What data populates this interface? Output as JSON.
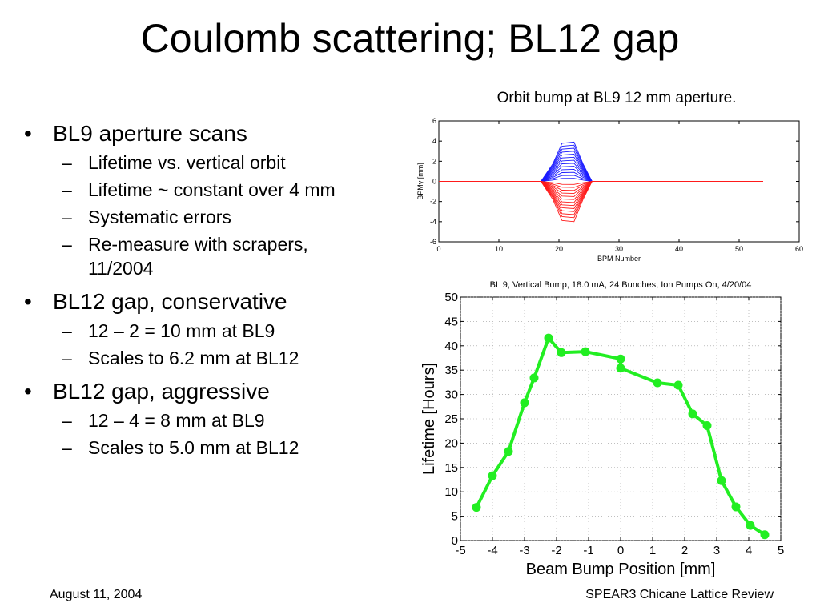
{
  "title": "Coulomb scattering; BL12 gap",
  "bullets": [
    {
      "text": "BL9 aperture scans",
      "sub": [
        "Lifetime vs. vertical orbit",
        "Lifetime ~ constant over 4 mm",
        "Systematic errors",
        "Re-measure with scrapers, 11/2004"
      ]
    },
    {
      "text": "BL12 gap, conservative",
      "sub": [
        "12 – 2 = 10 mm at BL9",
        "Scales to 6.2 mm at BL12"
      ]
    },
    {
      "text": "BL12 gap, aggressive",
      "sub": [
        "12 – 4 = 8 mm at BL9",
        "Scales to 5.0 mm at BL12"
      ]
    }
  ],
  "bullet_marker": "•",
  "sub_marker": "–",
  "top_chart_caption": "Orbit bump at BL9 12 mm aperture.",
  "footer": {
    "left": "August 11, 2004",
    "right": "SPEAR3 Chicane Lattice Review"
  },
  "chart_data": [
    {
      "type": "line",
      "title": "",
      "xlabel": "BPM Number",
      "ylabel": "BPMy [mm]",
      "xlim": [
        0,
        60
      ],
      "ylim": [
        -6,
        6
      ],
      "xticks": [
        0,
        10,
        20,
        30,
        40,
        50,
        60
      ],
      "yticks": [
        -6,
        -4,
        -2,
        0,
        2,
        4,
        6
      ],
      "grid": false,
      "x_range": [
        0,
        54
      ],
      "bump_center_bpm": 21.5,
      "bump_shape_bpm": [
        17,
        19,
        20.5,
        22.5,
        24,
        25.5
      ],
      "positive_bump_peaks_mm": [
        0.3,
        0.6,
        0.9,
        1.2,
        1.5,
        1.8,
        2.1,
        2.4,
        2.7,
        3.0,
        3.3,
        3.6,
        3.9
      ],
      "negative_bump_peaks_mm": [
        -0.3,
        -0.6,
        -0.9,
        -1.2,
        -1.5,
        -1.8,
        -2.1,
        -2.4,
        -2.7,
        -3.0,
        -3.3,
        -3.6,
        -4.0
      ],
      "colors": {
        "positive": "#1a1aff",
        "negative": "#ff1a1a"
      }
    },
    {
      "type": "line",
      "title": "BL 9, Vertical Bump, 18.0 mA, 24 Bunches, Ion Pumps On, 4/20/04",
      "xlabel": "Beam Bump Position [mm]",
      "ylabel": "Lifetime [Hours]",
      "xlim": [
        -5,
        5
      ],
      "ylim": [
        0,
        50
      ],
      "xticks": [
        -5,
        -4,
        -3,
        -2,
        -1,
        0,
        1,
        2,
        3,
        4,
        5
      ],
      "yticks": [
        0,
        5,
        10,
        15,
        20,
        25,
        30,
        35,
        40,
        45,
        50
      ],
      "grid": true,
      "series": [
        {
          "x": [
            -4.5,
            -4.0,
            -3.5,
            -3.0,
            -2.7,
            -2.25,
            -1.85,
            -1.1,
            0.0,
            0.0,
            1.15,
            1.8,
            2.25,
            2.7,
            3.15,
            3.6,
            4.05,
            4.5
          ],
          "y": [
            6.8,
            13.3,
            18.3,
            28.3,
            33.4,
            41.6,
            38.6,
            38.8,
            37.3,
            35.4,
            32.4,
            31.9,
            26.0,
            23.6,
            12.3,
            6.9,
            3.1,
            1.2
          ],
          "color": "#22ee22"
        }
      ]
    }
  ]
}
